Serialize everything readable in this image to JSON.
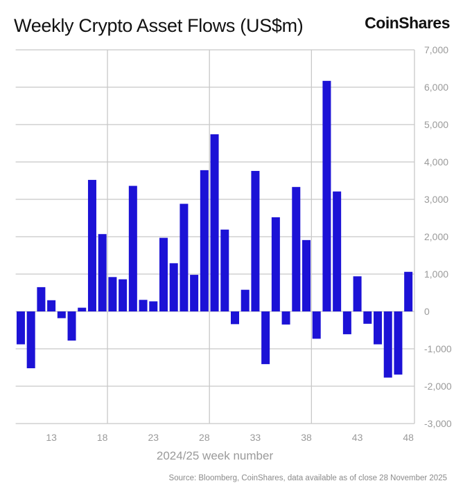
{
  "chart_data": {
    "type": "bar",
    "title": "Weekly Crypto Asset Flows (US$m)",
    "xlabel": "2024/25 week number",
    "ylabel": "",
    "source": "Source: Bloomberg, CoinShares, data available as of close 28 November 2025",
    "logo": "CoinShares",
    "x": [
      10,
      11,
      12,
      13,
      14,
      15,
      16,
      17,
      18,
      19,
      20,
      21,
      22,
      23,
      24,
      25,
      26,
      27,
      28,
      29,
      30,
      31,
      32,
      33,
      34,
      35,
      36,
      37,
      38,
      39,
      40,
      41,
      42,
      43,
      44,
      45,
      46,
      47,
      48
    ],
    "values": [
      -880,
      -1520,
      650,
      300,
      -180,
      -780,
      100,
      3520,
      2070,
      920,
      860,
      3360,
      310,
      270,
      1970,
      1290,
      2880,
      980,
      3780,
      4740,
      2190,
      -340,
      580,
      3760,
      -1410,
      2520,
      -350,
      3330,
      1910,
      -730,
      6170,
      3210,
      -610,
      940,
      -330,
      -880,
      -1770,
      -1690,
      1060
    ],
    "x_ticks": [
      13,
      18,
      23,
      28,
      33,
      38,
      43,
      48
    ],
    "y_ticks": [
      -3000,
      -2000,
      -1000,
      0,
      1000,
      2000,
      3000,
      4000,
      5000,
      6000,
      7000
    ],
    "y_tick_labels": [
      "-3,000",
      "-2,000",
      "-1,000",
      "0",
      "1,000",
      "2,000",
      "3,000",
      "4,000",
      "5,000",
      "6,000",
      "7,000"
    ],
    "ylim": [
      -3000,
      7000
    ],
    "xlim": [
      9.5,
      48.6
    ],
    "y_axis_position": "right",
    "grid": true,
    "bar_color": "#1c12d6",
    "grid_color": "#c8c8c8",
    "tick_label_color": "#9a9a9a"
  }
}
